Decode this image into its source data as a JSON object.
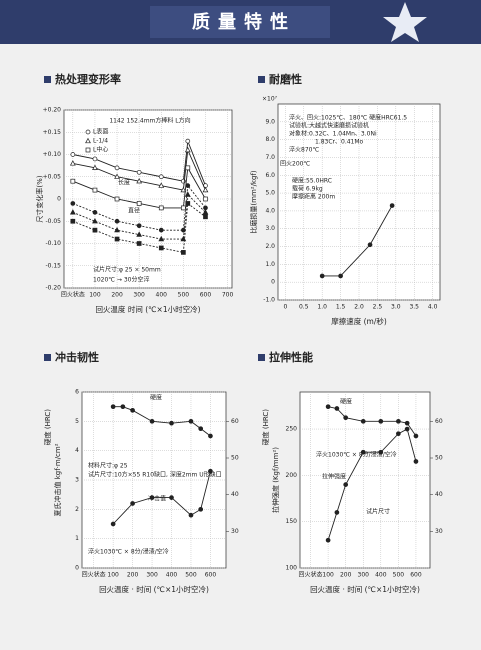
{
  "header": {
    "title": "质量特性"
  },
  "chart_data": [
    {
      "type": "line",
      "title": "热处理变形率",
      "grid": true,
      "xlabel": "回火温度 时间 (℃×1小时空冷)",
      "ylabel": "尺寸变化率(%)",
      "xlim": [
        -40,
        720
      ],
      "xticks": [
        {
          "value": 0,
          "label": "回火状态"
        },
        100,
        200,
        300,
        400,
        500,
        600,
        700
      ],
      "ylim": [
        -0.2,
        0.2
      ],
      "yticks": [
        {
          "value": -0.2,
          "label": "-0.20"
        },
        {
          "value": -0.15,
          "label": "-0.15"
        },
        {
          "value": -0.1,
          "label": "-0.10"
        },
        {
          "value": -0.05,
          "label": "-0.05"
        },
        0,
        {
          "value": 0.05,
          "label": "+0.05"
        },
        {
          "value": 0.1,
          "label": "+0.10"
        },
        {
          "value": 0.15,
          "label": "+0.15"
        },
        {
          "value": 0.2,
          "label": "+0.20"
        }
      ],
      "annotations": [
        "1142  152.4mm方棒料 L方向",
        "长度",
        "直径",
        "试片尺寸:φ 25 × 50mm",
        "1020℃ → 30分空淬"
      ],
      "series": [
        {
          "name": "L表面",
          "color": "#222222",
          "marker": "circle",
          "filled": false,
          "dashed": false,
          "x": [
            0,
            100,
            200,
            300,
            400,
            500,
            520,
            600
          ],
          "values": [
            0.1,
            0.09,
            0.07,
            0.06,
            0.05,
            0.04,
            0.13,
            0.03
          ]
        },
        {
          "name": "L-1/4",
          "color": "#222222",
          "marker": "triangle",
          "filled": false,
          "dashed": false,
          "x": [
            0,
            100,
            200,
            300,
            400,
            500,
            520,
            600
          ],
          "values": [
            0.08,
            0.07,
            0.05,
            0.04,
            0.03,
            0.02,
            0.11,
            0.02
          ]
        },
        {
          "name": "L中心",
          "color": "#222222",
          "marker": "square",
          "filled": false,
          "dashed": false,
          "x": [
            0,
            100,
            200,
            300,
            400,
            500,
            520,
            600
          ],
          "values": [
            0.04,
            0.02,
            0.0,
            -0.01,
            -0.02,
            -0.02,
            0.07,
            0.0
          ]
        },
        {
          "color": "#222222",
          "marker": "circle",
          "filled": true,
          "dashed": true,
          "x": [
            0,
            100,
            200,
            300,
            400,
            500,
            520,
            600
          ],
          "values": [
            -0.01,
            -0.03,
            -0.05,
            -0.06,
            -0.07,
            -0.07,
            0.03,
            -0.02
          ]
        },
        {
          "color": "#222222",
          "marker": "triangle",
          "filled": true,
          "dashed": true,
          "x": [
            0,
            100,
            200,
            300,
            400,
            500,
            520,
            600
          ],
          "values": [
            -0.03,
            -0.05,
            -0.07,
            -0.08,
            -0.09,
            -0.09,
            0.01,
            -0.03
          ]
        },
        {
          "color": "#222222",
          "marker": "square",
          "filled": true,
          "dashed": true,
          "x": [
            0,
            100,
            200,
            300,
            400,
            500,
            520,
            600
          ],
          "values": [
            -0.05,
            -0.07,
            -0.09,
            -0.1,
            -0.11,
            -0.12,
            -0.01,
            -0.04
          ]
        }
      ]
    },
    {
      "type": "line",
      "title": "耐磨性",
      "grid": true,
      "xlabel": "摩擦速度 (m/秒)",
      "ylabel": "比磨损量(mm²/kgf)",
      "xlim": [
        -0.2,
        4.2
      ],
      "xticks": [
        0,
        0.5,
        {
          "value": 1,
          "label": "1.0"
        },
        1.5,
        {
          "value": 2,
          "label": "2.0"
        },
        2.5,
        {
          "value": 3,
          "label": "3.0"
        },
        3.5,
        {
          "value": 4,
          "label": "4.0"
        }
      ],
      "ylim": [
        -1,
        10
      ],
      "yticks": [
        {
          "value": -1,
          "label": "-1.0"
        },
        0,
        {
          "value": 1,
          "label": "1.0"
        },
        {
          "value": 2,
          "label": "2.0"
        },
        {
          "value": 3,
          "label": "3.0"
        },
        {
          "value": 4,
          "label": "4.0"
        },
        {
          "value": 5,
          "label": "5.0"
        },
        {
          "value": 6,
          "label": "6.0"
        },
        {
          "value": 7,
          "label": "7.0"
        },
        {
          "value": 8,
          "label": "8.0"
        },
        {
          "value": 9,
          "label": "9.0"
        }
      ],
      "annotations": [
        "×10⁷",
        "淬火、回火:1025℃、180℃ 硬度HRC61.5",
        "试验机:大越式快速磨损试验机",
        "对象材:0.32C、1.04Mn、3.0Ni",
        "1.83Cr、0.41Mo",
        "淬火870℃",
        "回火200℃",
        "硬度:55.0HRC",
        "载荷 6.9kg",
        "摩擦距离 200m"
      ],
      "series": [
        {
          "color": "#222222",
          "marker": "circle",
          "filled": true,
          "dashed": false,
          "x": [
            1.0,
            1.5,
            2.3,
            2.9
          ],
          "values": [
            0.35,
            0.35,
            2.1,
            4.3
          ]
        }
      ]
    },
    {
      "type": "line",
      "title": "冲击韧性",
      "grid": true,
      "xlabel": "回火温度 · 时间 (℃×1小时空冷)",
      "ylabel": "夏氏冲击值 kgf·m/cm²",
      "y2label": "硬度 (HRC)",
      "xlim": [
        -60,
        680
      ],
      "xticks": [
        {
          "value": 0,
          "label": "回火状态"
        },
        100,
        200,
        300,
        400,
        500,
        600
      ],
      "ylim": [
        0,
        6
      ],
      "yticks": [
        0,
        1,
        2,
        3,
        4,
        5,
        6
      ],
      "y2lim": [
        20,
        68
      ],
      "y2ticks": [
        30,
        40,
        50,
        60
      ],
      "annotations": [
        "硬度",
        "材料尺寸:φ 25",
        "试片尺寸:10方×55 R10缺口, 深度2mm U形缺口",
        "冲击值",
        "淬火1030℃ × 8分/浸渍/空冷"
      ],
      "series": [
        {
          "color": "#222222",
          "marker": "circle",
          "filled": true,
          "dashed": false,
          "axis": "y2",
          "x": [
            100,
            150,
            200,
            300,
            400,
            500,
            550,
            600
          ],
          "values": [
            64,
            64,
            63,
            60,
            59.5,
            60,
            58,
            56
          ]
        },
        {
          "color": "#222222",
          "marker": "circle",
          "filled": true,
          "dashed": false,
          "x": [
            100,
            200,
            300,
            400,
            500,
            550,
            600
          ],
          "values": [
            1.5,
            2.2,
            2.4,
            2.4,
            1.8,
            2.0,
            3.3
          ]
        }
      ]
    },
    {
      "type": "line",
      "title": "拉伸性能",
      "grid": true,
      "xlabel": "回火温度 · 时间 (℃×1小时空冷)",
      "ylabel": "拉伸强度 (Kgf/mm²)",
      "y2label": "硬度 (HRC)",
      "xlim": [
        -60,
        680
      ],
      "xticks": [
        {
          "value": 0,
          "label": "回火状态"
        },
        100,
        200,
        300,
        400,
        500,
        600
      ],
      "ylim": [
        100,
        290
      ],
      "yticks": [
        100,
        150,
        200,
        250
      ],
      "y2lim": [
        20,
        68
      ],
      "y2ticks": [
        30,
        40,
        50,
        60
      ],
      "annotations": [
        "硬度",
        "淬火1030℃ × 8分/浸渍/空冷",
        "拉伸强度",
        "试片尺寸"
      ],
      "series": [
        {
          "color": "#222222",
          "marker": "circle",
          "filled": true,
          "dashed": false,
          "axis": "y2",
          "x": [
            100,
            150,
            200,
            300,
            400,
            500,
            550,
            600
          ],
          "values": [
            64,
            63.5,
            61,
            60,
            60,
            60,
            59.5,
            56
          ]
        },
        {
          "color": "#222222",
          "marker": "circle",
          "filled": true,
          "dashed": false,
          "x": [
            100,
            150,
            200,
            300,
            400,
            500,
            550,
            600
          ],
          "values": [
            130,
            160,
            190,
            225,
            225,
            245,
            250,
            215
          ]
        }
      ]
    }
  ]
}
